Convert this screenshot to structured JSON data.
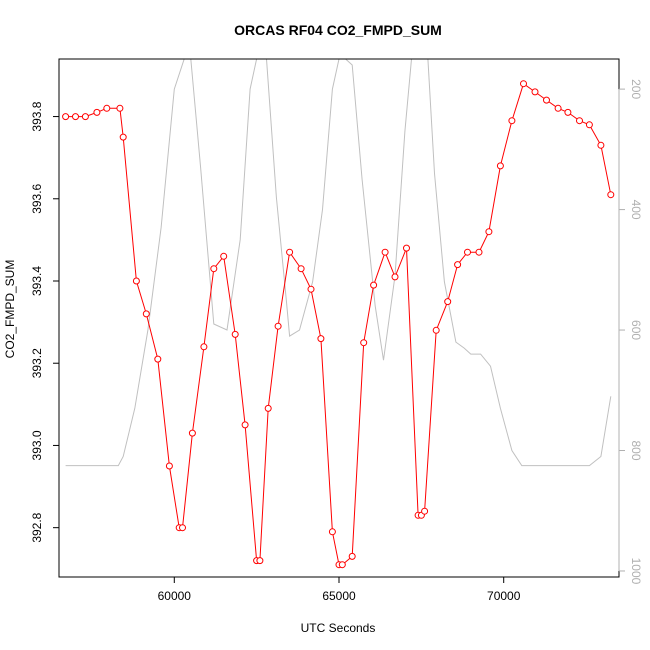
{
  "chart_data": {
    "type": "line",
    "title": "ORCAS RF04 CO2_FMPD_SUM",
    "xlabel": "UTC Seconds",
    "ylabel": "CO2_FMPD_SUM",
    "xlim": [
      56500,
      73500
    ],
    "ylim": [
      392.68,
      393.94
    ],
    "y2lim": [
      1010,
      150
    ],
    "x_ticks": [
      60000,
      65000,
      70000
    ],
    "y_ticks": [
      392.8,
      393.0,
      393.2,
      393.4,
      393.6,
      393.8
    ],
    "y2_ticks": [
      200,
      400,
      600,
      800,
      1000
    ],
    "grid": false,
    "colors": {
      "primary": "#ff0000",
      "secondary": "#c0c0c0",
      "secondary_ticks": "#b0b0b0"
    },
    "series": [
      {
        "role": "primary",
        "marker": "open-circle",
        "x": [
          56700,
          57000,
          57300,
          57650,
          57950,
          58350,
          58450,
          58850,
          59150,
          59500,
          59850,
          60150,
          60250,
          60550,
          60900,
          61200,
          61500,
          61850,
          62150,
          62500,
          62600,
          62850,
          63150,
          63500,
          63850,
          64150,
          64450,
          64800,
          65000,
          65100,
          65400,
          65750,
          66050,
          66400,
          66700,
          67050,
          67400,
          67500,
          67600,
          67950,
          68300,
          68600,
          68900,
          69250,
          69550,
          69900,
          70250,
          70600,
          70950,
          71300,
          71650,
          71950,
          72300,
          72600,
          72950,
          73250
        ],
        "y": [
          393.8,
          393.8,
          393.8,
          393.81,
          393.82,
          393.82,
          393.75,
          393.4,
          393.32,
          393.21,
          392.95,
          392.8,
          392.8,
          393.03,
          393.24,
          393.43,
          393.46,
          393.27,
          393.05,
          392.72,
          392.72,
          393.09,
          393.29,
          393.47,
          393.43,
          393.38,
          393.26,
          392.79,
          392.71,
          392.71,
          392.73,
          393.25,
          393.39,
          393.47,
          393.41,
          393.48,
          392.83,
          392.83,
          392.84,
          393.28,
          393.35,
          393.44,
          393.47,
          393.47,
          393.52,
          393.68,
          393.79,
          393.88,
          393.86,
          393.84,
          393.82,
          393.81,
          393.79,
          393.78,
          393.73,
          393.61
        ]
      },
      {
        "role": "secondary",
        "axis": "right",
        "x": [
          56700,
          57500,
          58300,
          58450,
          58800,
          59200,
          59600,
          60000,
          60300,
          60500,
          60800,
          61200,
          61600,
          62000,
          62300,
          62500,
          62800,
          63100,
          63400,
          63500,
          63800,
          64200,
          64500,
          64800,
          65000,
          65200,
          65400,
          65700,
          66100,
          66350,
          66700,
          67000,
          67200,
          67450,
          67700,
          67900,
          68200,
          68550,
          68800,
          69000,
          69300,
          69600,
          69900,
          70250,
          70550,
          71000,
          71500,
          72000,
          72600,
          72950,
          73250
        ],
        "y": [
          825,
          825,
          825,
          810,
          730,
          600,
          430,
          200,
          150,
          150,
          330,
          590,
          600,
          450,
          200,
          150,
          150,
          380,
          550,
          610,
          600,
          520,
          400,
          200,
          150,
          150,
          160,
          350,
          560,
          650,
          510,
          270,
          150,
          150,
          150,
          340,
          520,
          620,
          630,
          640,
          640,
          660,
          730,
          800,
          825,
          825,
          825,
          825,
          825,
          810,
          710
        ]
      }
    ]
  }
}
